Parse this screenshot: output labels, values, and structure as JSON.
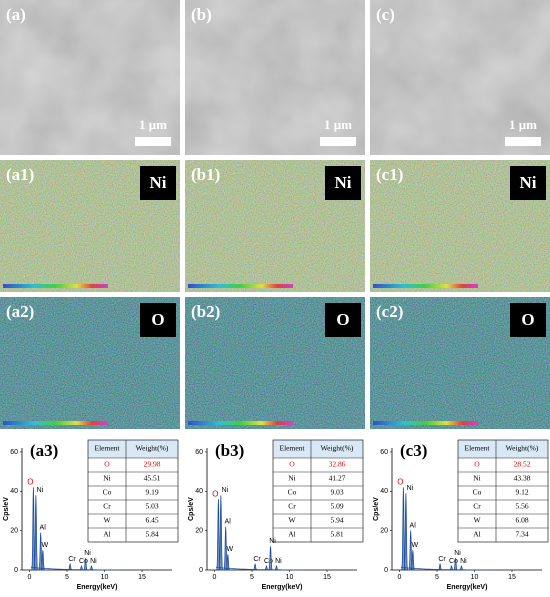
{
  "sem": [
    {
      "label": "(a)",
      "scale": "1 μm"
    },
    {
      "label": "(b)",
      "scale": "1 μm"
    },
    {
      "label": "(c)",
      "scale": "1 μm"
    }
  ],
  "maps": [
    {
      "element": "Ni",
      "labels": [
        "(a1)",
        "(b1)",
        "(c1)"
      ]
    },
    {
      "element": "O",
      "labels": [
        "(a2)",
        "(b2)",
        "(c2)"
      ]
    }
  ],
  "spectra": [
    {
      "label": "(a3)",
      "y_label": "Cps/eV",
      "x_label": "Energy(keV)",
      "xlim": [
        -1,
        19
      ],
      "ylim": [
        0,
        62
      ],
      "xticks": [
        0,
        5,
        10,
        15
      ],
      "yticks": [
        0,
        20,
        40,
        60
      ],
      "peaks": [
        {
          "label": "O",
          "energy": 0.52,
          "cps": 42
        },
        {
          "label": "Ni",
          "energy": 0.85,
          "cps": 38
        },
        {
          "label": "Al",
          "energy": 1.49,
          "cps": 19
        },
        {
          "label": "W",
          "energy": 1.78,
          "cps": 10
        },
        {
          "label": "Cr",
          "energy": 5.41,
          "cps": 3
        },
        {
          "label": "Co",
          "energy": 6.93,
          "cps": 2
        },
        {
          "label": "Ni",
          "energy": 7.47,
          "cps": 6
        },
        {
          "label": "Ni",
          "energy": 8.26,
          "cps": 2
        }
      ],
      "table": {
        "header": [
          "Element",
          "Weight(%)"
        ],
        "rows": [
          [
            "O",
            "29.98"
          ],
          [
            "Ni",
            "45.51"
          ],
          [
            "Co",
            "9.19"
          ],
          [
            "Cr",
            "5.03"
          ],
          [
            "W",
            "6.45"
          ],
          [
            "Al",
            "5.84"
          ]
        ]
      }
    },
    {
      "label": "(b3)",
      "y_label": "Cps/eV",
      "x_label": "Energy(keV)",
      "xlim": [
        -1,
        19
      ],
      "ylim": [
        0,
        62
      ],
      "xticks": [
        0,
        5,
        10,
        15
      ],
      "yticks": [
        0,
        20,
        40,
        60
      ],
      "peaks": [
        {
          "label": "O",
          "energy": 0.52,
          "cps": 36
        },
        {
          "label": "Ni",
          "energy": 0.85,
          "cps": 38
        },
        {
          "label": "Al",
          "energy": 1.49,
          "cps": 22
        },
        {
          "label": "W",
          "energy": 1.78,
          "cps": 8
        },
        {
          "label": "Cr",
          "energy": 5.41,
          "cps": 3
        },
        {
          "label": "Co",
          "energy": 6.93,
          "cps": 2
        },
        {
          "label": "Ni",
          "energy": 7.47,
          "cps": 12
        },
        {
          "label": "Ni",
          "energy": 8.26,
          "cps": 2
        }
      ],
      "table": {
        "header": [
          "Element",
          "Weight(%)"
        ],
        "rows": [
          [
            "O",
            "32.86"
          ],
          [
            "Ni",
            "41.27"
          ],
          [
            "Co",
            "9.03"
          ],
          [
            "Cr",
            "5.09"
          ],
          [
            "W",
            "5.94"
          ],
          [
            "Al",
            "5.81"
          ]
        ]
      }
    },
    {
      "label": "(c3)",
      "y_label": "Cps/eV",
      "x_label": "Energy(keV)",
      "xlim": [
        -1,
        19
      ],
      "ylim": [
        0,
        62
      ],
      "xticks": [
        0,
        5,
        10,
        15
      ],
      "yticks": [
        0,
        20,
        40,
        60
      ],
      "peaks": [
        {
          "label": "O",
          "energy": 0.52,
          "cps": 42
        },
        {
          "label": "Ni",
          "energy": 0.85,
          "cps": 39
        },
        {
          "label": "Al",
          "energy": 1.49,
          "cps": 20
        },
        {
          "label": "W",
          "energy": 1.78,
          "cps": 10
        },
        {
          "label": "Cr",
          "energy": 5.41,
          "cps": 3
        },
        {
          "label": "Co",
          "energy": 6.93,
          "cps": 2
        },
        {
          "label": "Ni",
          "energy": 7.47,
          "cps": 6
        },
        {
          "label": "Ni",
          "energy": 8.26,
          "cps": 2
        }
      ],
      "table": {
        "header": [
          "Element",
          "Weight(%)"
        ],
        "rows": [
          [
            "O",
            "28.52"
          ],
          [
            "Ni",
            "43.38"
          ],
          [
            "Co",
            "9.12"
          ],
          [
            "Cr",
            "5.56"
          ],
          [
            "W",
            "6.08"
          ],
          [
            "Al",
            "7.34"
          ]
        ]
      }
    }
  ]
}
